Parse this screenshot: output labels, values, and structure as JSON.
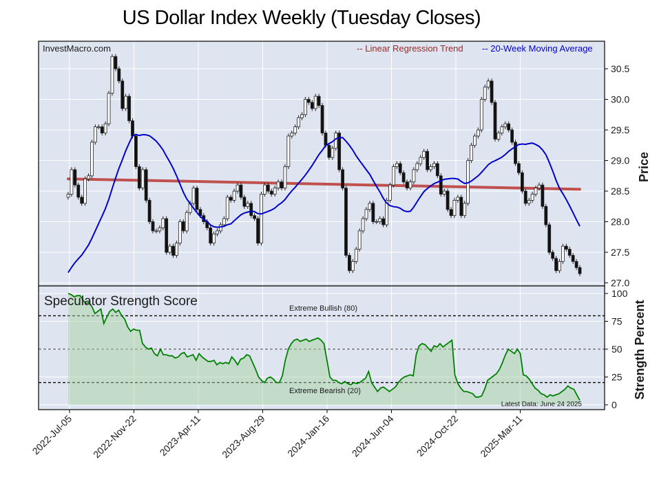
{
  "title": "US Dollar Index Weekly (Tuesday Closes)",
  "chart_data": [
    {
      "type": "candlestick",
      "source_label": "InvestMacro.com",
      "ylabel": "Price",
      "ylim": [
        26.95,
        30.95
      ],
      "yticks": [
        27.0,
        27.5,
        28.0,
        28.5,
        29.0,
        29.5,
        30.0,
        30.5
      ],
      "xticks": [
        "2022-Jul-05",
        "2022-Nov-22",
        "2023-Apr-11",
        "2023-Aug-29",
        "2024-Jan-16",
        "2024-Jun-04",
        "2024-Oct-22",
        "2025-Mar-11"
      ],
      "grid": true,
      "legend_position": "top-right",
      "series": [
        {
          "name": "-- Linear Regression Trend",
          "color": "#c0504d"
        },
        {
          "name": "-- 20-Week Moving Average",
          "color": "#0000cc"
        }
      ],
      "regression_trend": {
        "start": 28.7,
        "end": 28.53
      },
      "closes": [
        28.45,
        28.85,
        28.6,
        28.4,
        28.3,
        28.7,
        28.75,
        29.3,
        29.55,
        29.55,
        29.45,
        29.6,
        30.1,
        30.7,
        30.5,
        30.3,
        29.85,
        30.05,
        29.65,
        29.4,
        28.9,
        28.55,
        28.85,
        28.35,
        28.0,
        27.85,
        27.85,
        27.9,
        28.05,
        27.5,
        27.6,
        27.45,
        27.65,
        28.0,
        27.85,
        28.15,
        28.3,
        28.55,
        28.2,
        28.1,
        28.0,
        27.9,
        27.65,
        27.8,
        27.85,
        27.95,
        28.05,
        28.4,
        28.35,
        28.5,
        28.6,
        28.4,
        28.25,
        28.3,
        28.1,
        28.05,
        27.65,
        28.45,
        28.6,
        28.5,
        28.45,
        28.55,
        28.65,
        28.55,
        28.9,
        29.4,
        29.45,
        29.55,
        29.7,
        29.75,
        30.0,
        29.95,
        29.85,
        30.05,
        29.9,
        29.45,
        29.25,
        29.05,
        29.2,
        29.45,
        28.85,
        28.55,
        27.45,
        27.2,
        27.35,
        27.55,
        27.85,
        28.05,
        28.2,
        28.3,
        28.0,
        28.0,
        28.05,
        27.95,
        28.35,
        28.6,
        28.9,
        28.95,
        28.8,
        28.65,
        28.55,
        28.65,
        28.85,
        28.95,
        29.05,
        29.15,
        28.85,
        28.9,
        28.95,
        28.75,
        28.45,
        28.5,
        28.2,
        28.1,
        28.35,
        28.4,
        28.1,
        28.3,
        29.0,
        29.25,
        29.4,
        29.5,
        30.0,
        30.2,
        30.3,
        29.95,
        29.35,
        29.45,
        29.55,
        29.6,
        29.5,
        29.3,
        28.95,
        28.8,
        28.5,
        28.3,
        28.35,
        28.45,
        28.55,
        28.6,
        28.25,
        27.95,
        27.5,
        27.4,
        27.2,
        27.35,
        27.6,
        27.55,
        27.45,
        27.35,
        27.25,
        27.15
      ]
    },
    {
      "type": "line",
      "label": "Speculator Strength Score",
      "ylabel": "Strength Percent",
      "ylim": [
        0,
        100
      ],
      "yticks": [
        0,
        25,
        50,
        75,
        100
      ],
      "thresholds": [
        {
          "value": 80,
          "label": "Extreme Bullish (80)"
        },
        {
          "value": 50,
          "label": ""
        },
        {
          "value": 20,
          "label": "Extreme Bearish (20)"
        }
      ],
      "annotation": "Latest Data: June 24 2025",
      "series": [
        {
          "name": "",
          "color": "#008000",
          "values": [
            100,
            99,
            97,
            98,
            98,
            94,
            91,
            92,
            88,
            82,
            84,
            86,
            73,
            79,
            84,
            86,
            83,
            85,
            80,
            77,
            70,
            66,
            68,
            67,
            67,
            55,
            52,
            50,
            51,
            46,
            44,
            50,
            45,
            45,
            44,
            44,
            42,
            43,
            46,
            47,
            43,
            44,
            45,
            40,
            46,
            43,
            41,
            39,
            39,
            40,
            36,
            38,
            37,
            38,
            37,
            43,
            40,
            36,
            41,
            42,
            45,
            44,
            38,
            32,
            25,
            22,
            20,
            24,
            25,
            23,
            20,
            20,
            26,
            40,
            50,
            55,
            58,
            59,
            57,
            58,
            59,
            57,
            58,
            59,
            60,
            58,
            55,
            40,
            25,
            22,
            22,
            20,
            19,
            21,
            19,
            18,
            20,
            19,
            20,
            22,
            24,
            30,
            20,
            16,
            12,
            15,
            16,
            14,
            12,
            14,
            16,
            20,
            23,
            25,
            26,
            27,
            26,
            45,
            53,
            55,
            54,
            51,
            48,
            53,
            52,
            55,
            52,
            54,
            56,
            58,
            27,
            19,
            15,
            12,
            12,
            11,
            10,
            7,
            7,
            8,
            14,
            22,
            24,
            26,
            28,
            32,
            38,
            45,
            50,
            48,
            46,
            50,
            46,
            27,
            26,
            23,
            19,
            15,
            13,
            10,
            9,
            7,
            9,
            8,
            9,
            10,
            12,
            14,
            17,
            15,
            14,
            9,
            4
          ]
        }
      ]
    }
  ]
}
